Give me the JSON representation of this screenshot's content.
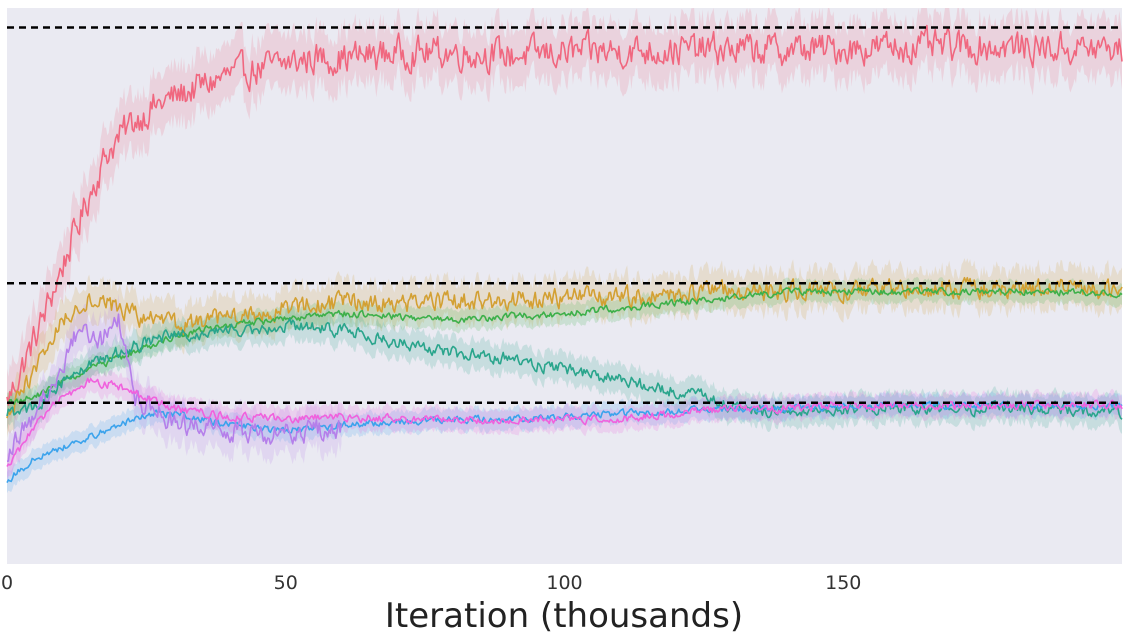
{
  "chart_data": {
    "type": "line",
    "title": "",
    "xlabel": "Iteration (thousands)",
    "ylabel": "",
    "xlim": [
      0,
      200
    ],
    "ylim": [
      0,
      1
    ],
    "x_ticks": [
      0,
      50,
      100,
      150
    ],
    "x_tick_labels": [
      "0",
      "50",
      "100",
      "150"
    ],
    "grid": false,
    "background": "#EAEAF2",
    "reference_lines": [
      {
        "y": 0.965,
        "style": "dashed",
        "color": "#000000"
      },
      {
        "y": 0.505,
        "style": "dashed",
        "color": "#000000"
      },
      {
        "y": 0.29,
        "style": "dashed",
        "color": "#000000"
      }
    ],
    "series": [
      {
        "color": "#F0677F",
        "noise": 0.045,
        "x": [
          0,
          3,
          6,
          9,
          12,
          15,
          18,
          22,
          26,
          30,
          35,
          40,
          45,
          50,
          55,
          60,
          70,
          80,
          90,
          100,
          120,
          140,
          160,
          180,
          200
        ],
        "y": [
          0.29,
          0.36,
          0.43,
          0.51,
          0.59,
          0.67,
          0.74,
          0.79,
          0.82,
          0.84,
          0.86,
          0.88,
          0.89,
          0.9,
          0.91,
          0.91,
          0.92,
          0.92,
          0.915,
          0.92,
          0.925,
          0.925,
          0.93,
          0.93,
          0.925
        ]
      },
      {
        "color": "#D3A033",
        "noise": 0.028,
        "x": [
          0,
          5,
          10,
          15,
          20,
          25,
          30,
          40,
          50,
          60,
          70,
          80,
          90,
          100,
          110,
          120,
          130,
          140,
          150,
          160,
          170,
          180,
          190,
          200
        ],
        "y": [
          0.26,
          0.35,
          0.44,
          0.48,
          0.46,
          0.44,
          0.43,
          0.44,
          0.46,
          0.47,
          0.47,
          0.47,
          0.475,
          0.48,
          0.48,
          0.485,
          0.49,
          0.49,
          0.49,
          0.495,
          0.495,
          0.495,
          0.495,
          0.49
        ]
      },
      {
        "color": "#3DB04A",
        "noise": 0.01,
        "x": [
          0,
          5,
          10,
          15,
          20,
          25,
          30,
          40,
          50,
          60,
          70,
          80,
          90,
          100,
          110,
          120,
          130,
          140,
          150,
          160,
          170,
          180,
          190,
          200
        ],
        "y": [
          0.29,
          0.3,
          0.33,
          0.35,
          0.37,
          0.39,
          0.41,
          0.43,
          0.44,
          0.45,
          0.445,
          0.44,
          0.445,
          0.45,
          0.46,
          0.47,
          0.48,
          0.49,
          0.49,
          0.49,
          0.49,
          0.49,
          0.49,
          0.485
        ]
      },
      {
        "color": "#2AA58C",
        "noise": 0.018,
        "x": [
          0,
          5,
          10,
          15,
          20,
          25,
          30,
          40,
          50,
          60,
          70,
          80,
          90,
          100,
          110,
          120,
          125,
          130,
          140,
          150,
          160,
          170,
          180,
          190,
          200
        ],
        "y": [
          0.27,
          0.28,
          0.33,
          0.36,
          0.38,
          0.4,
          0.41,
          0.42,
          0.43,
          0.42,
          0.4,
          0.38,
          0.37,
          0.35,
          0.33,
          0.31,
          0.3,
          0.28,
          0.275,
          0.28,
          0.28,
          0.28,
          0.28,
          0.28,
          0.275
        ]
      },
      {
        "color": "#3BA3EC",
        "noise": 0.01,
        "x": [
          0,
          5,
          10,
          15,
          20,
          25,
          30,
          40,
          50,
          60,
          70,
          80,
          90,
          100,
          110,
          120,
          130,
          140,
          150,
          160,
          170,
          180,
          190,
          200
        ],
        "y": [
          0.15,
          0.19,
          0.21,
          0.23,
          0.25,
          0.27,
          0.27,
          0.25,
          0.24,
          0.25,
          0.255,
          0.26,
          0.26,
          0.265,
          0.27,
          0.275,
          0.28,
          0.28,
          0.285,
          0.285,
          0.285,
          0.285,
          0.285,
          0.285
        ]
      },
      {
        "color": "#B57FEA",
        "noise": 0.03,
        "x": [
          0,
          5,
          10,
          13,
          17,
          20,
          23,
          26,
          30,
          35,
          40,
          50,
          60
        ],
        "y": [
          0.2,
          0.27,
          0.35,
          0.43,
          0.4,
          0.45,
          0.3,
          0.28,
          0.25,
          0.245,
          0.24,
          0.235,
          0.245
        ]
      },
      {
        "color": "#F061DD",
        "noise": 0.012,
        "x": [
          0,
          5,
          10,
          15,
          20,
          25,
          30,
          40,
          50,
          60,
          70,
          80,
          90,
          100,
          110,
          120,
          130,
          140,
          150,
          160,
          170,
          180,
          190,
          200
        ],
        "y": [
          0.17,
          0.25,
          0.3,
          0.33,
          0.32,
          0.3,
          0.28,
          0.265,
          0.26,
          0.265,
          0.26,
          0.26,
          0.26,
          0.26,
          0.26,
          0.27,
          0.28,
          0.28,
          0.285,
          0.285,
          0.285,
          0.285,
          0.285,
          0.285
        ]
      }
    ]
  }
}
